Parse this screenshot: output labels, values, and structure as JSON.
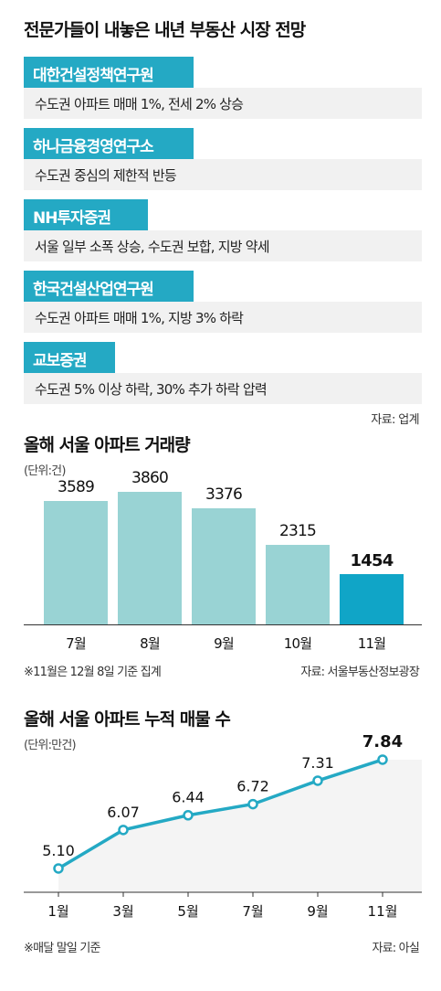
{
  "page_title": "전문가들이 내놓은 내년 부동산 시장 전망",
  "forecasts": [
    {
      "institution": "대한건설정책연구원",
      "outlook": "수도권 아파트 매매 1%, 전세 2% 상승"
    },
    {
      "institution": "하나금융경영연구소",
      "outlook": "수도권 중심의 제한적 반등"
    },
    {
      "institution": "NH투자증권",
      "outlook": "서울 일부 소폭 상승, 수도권 보합, 지방 약세"
    },
    {
      "institution": "한국건설산업연구원",
      "outlook": "수도권 아파트 매매 1%, 지방 3% 하락"
    },
    {
      "institution": "교보증권",
      "outlook": "수도권 5% 이상 하락, 30% 추가 하락 압력"
    }
  ],
  "forecast_source": "자료: 업계",
  "colors": {
    "accent": "#24a9c4",
    "bar": "#99d3d4",
    "bar_highlight": "#10a5c7",
    "line": "#24a9c4"
  },
  "chart_data": [
    {
      "type": "bar",
      "title": "올해 서울 아파트 거래량",
      "unit": "(단위:건)",
      "categories": [
        "7월",
        "8월",
        "9월",
        "10월",
        "11월"
      ],
      "values": [
        3589,
        3860,
        3376,
        2315,
        1454
      ],
      "value_labels": [
        "3589",
        "3860",
        "3376",
        "2315",
        "1454"
      ],
      "highlight_index": 4,
      "note": "※11월은 12월 8일 기준 집계",
      "source": "자료: 서울부동산정보광장",
      "ylim": [
        0,
        4000
      ]
    },
    {
      "type": "line",
      "title": "올해 서울 아파트 누적 매물 수",
      "unit": "(단위:만건)",
      "categories": [
        "1월",
        "3월",
        "5월",
        "7월",
        "9월",
        "11월"
      ],
      "values": [
        5.1,
        6.07,
        6.44,
        6.72,
        7.31,
        7.84
      ],
      "value_labels": [
        "5.10",
        "6.07",
        "6.44",
        "6.72",
        "7.31",
        "7.84"
      ],
      "highlight_index": 5,
      "note": "※매달 말일 기준",
      "source": "자료: 아실",
      "ylim": [
        4.5,
        8.0
      ]
    }
  ]
}
